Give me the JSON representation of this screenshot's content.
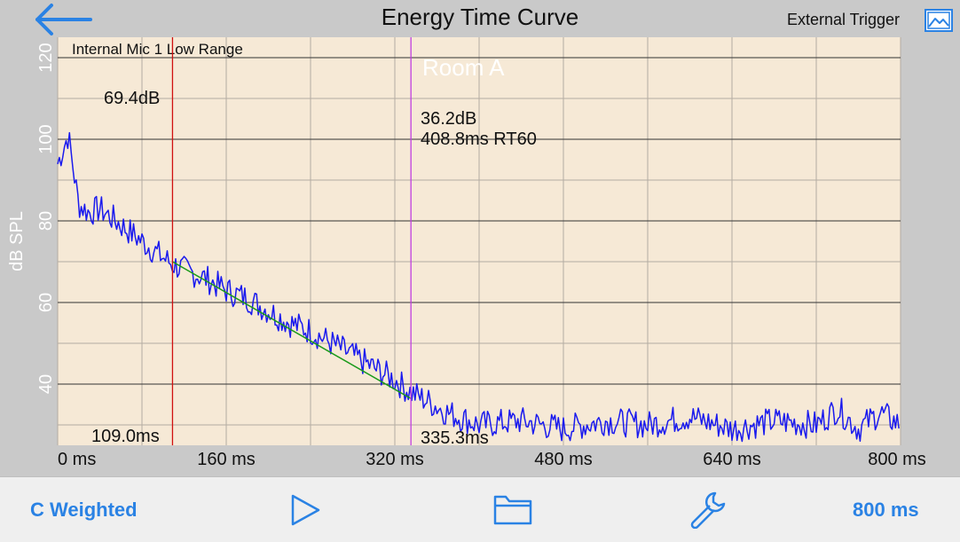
{
  "header": {
    "title": "Energy Time Curve",
    "trigger_label": "External Trigger"
  },
  "chart_data": {
    "type": "line",
    "xlabel": "",
    "ylabel": "dB SPL",
    "xlim": [
      0,
      800
    ],
    "ylim": [
      25,
      125
    ],
    "x_ticks": [
      0,
      160,
      320,
      480,
      640,
      800
    ],
    "x_tick_labels": [
      "0 ms",
      "160 ms",
      "320 ms",
      "480 ms",
      "640 ms",
      "800 ms"
    ],
    "y_ticks": [
      40,
      60,
      80,
      100,
      120
    ],
    "y_tick_labels": [
      "40",
      "60",
      "80",
      "100",
      "120"
    ],
    "grid": true,
    "source_label": "Internal Mic 1 Low Range",
    "room_label": "Room A",
    "series": [
      {
        "color": "#1a1aee",
        "x": [
          0,
          10,
          20,
          30,
          40,
          50,
          60,
          70,
          80,
          90,
          100,
          109,
          120,
          140,
          160,
          180,
          200,
          220,
          240,
          260,
          280,
          300,
          320,
          335,
          350,
          370,
          400,
          440,
          480,
          520,
          560,
          600,
          640,
          680,
          720,
          740,
          760,
          780,
          800
        ],
        "y": [
          94,
          101,
          84,
          82,
          83,
          81,
          79,
          77,
          75,
          73,
          71,
          69.4,
          68,
          66,
          63,
          61,
          58,
          55,
          53,
          50,
          47,
          44,
          41,
          38,
          36,
          33,
          30,
          31,
          29,
          31,
          30,
          32,
          29,
          31,
          30,
          34,
          29,
          33,
          30
        ]
      },
      {
        "color": "#1a9a1a",
        "x": [
          109,
          335
        ],
        "y": [
          70,
          36.5
        ]
      }
    ],
    "markers": [
      {
        "x": 109.0,
        "color": "#d01010",
        "db_label": "69.4dB",
        "time_label": "109.0ms"
      },
      {
        "x": 335.3,
        "color": "#c040e0",
        "db_label": "36.2dB",
        "rt_label": "408.8ms RT60",
        "time_label": "335.3ms"
      }
    ]
  },
  "toolbar": {
    "weighting_label": "C Weighted",
    "duration_label": "800 ms"
  },
  "colors": {
    "accent": "#2a82e4",
    "plot_bg": "#f6e9d6"
  }
}
